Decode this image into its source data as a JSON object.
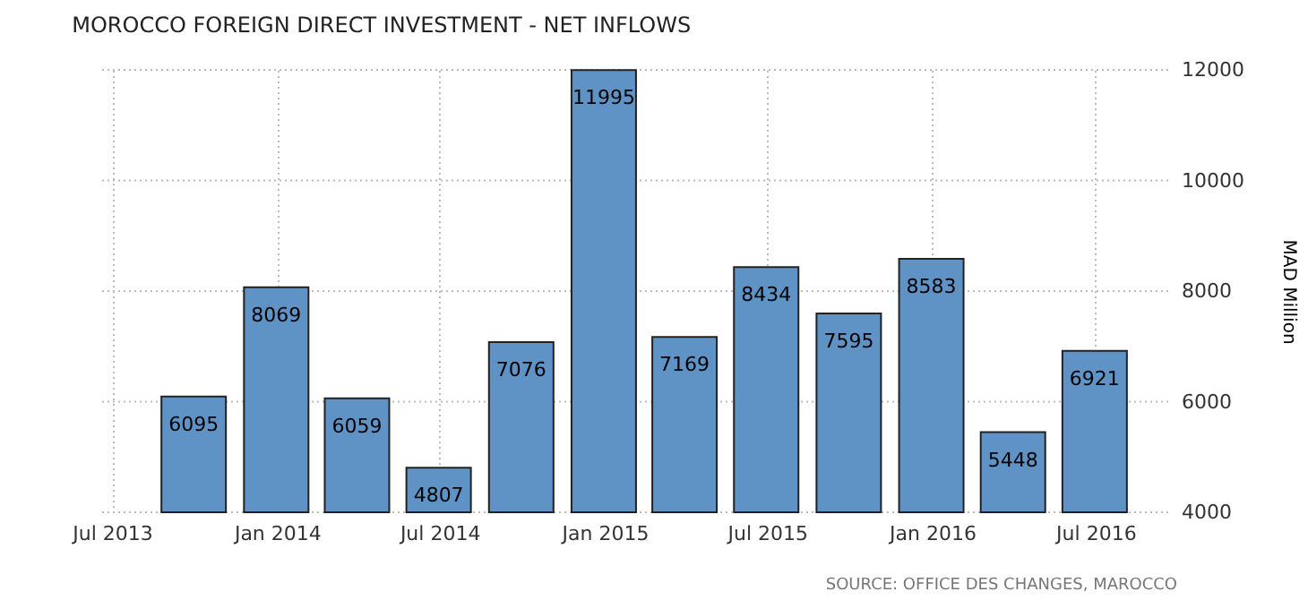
{
  "chart_data": {
    "type": "bar",
    "title": "MOROCCO FOREIGN DIRECT INVESTMENT - NET INFLOWS",
    "ylabel": "MAD Million",
    "x": [
      "2013-09-30",
      "2013-12-31",
      "2014-03-31",
      "2014-06-30",
      "2014-09-30",
      "2014-12-31",
      "2015-03-31",
      "2015-06-30",
      "2015-09-30",
      "2015-12-31",
      "2016-03-31",
      "2016-06-30"
    ],
    "values": [
      6095,
      8069,
      6059,
      4807,
      7076,
      11995,
      7169,
      8434,
      7595,
      8583,
      5448,
      6921
    ],
    "color": "#5f93c6",
    "data_labels": true,
    "xlim": [
      "2013-06-20",
      "2016-09-20"
    ],
    "xticks": [
      {
        "value": "2013-07-01",
        "label": "Jul 2013"
      },
      {
        "value": "2014-01-01",
        "label": "Jan 2014"
      },
      {
        "value": "2014-07-01",
        "label": "Jul 2014"
      },
      {
        "value": "2015-01-01",
        "label": "Jan 2015"
      },
      {
        "value": "2015-07-01",
        "label": "Jul 2015"
      },
      {
        "value": "2016-01-01",
        "label": "Jan 2016"
      },
      {
        "value": "2016-07-01",
        "label": "Jul 2016"
      }
    ],
    "ylim": [
      4000,
      12000
    ],
    "yticks": [
      4000,
      6000,
      8000,
      10000,
      12000
    ],
    "grid": true,
    "annotations": [
      "SOURCE: OFFICE DES CHANGES, MAROCCO"
    ]
  }
}
